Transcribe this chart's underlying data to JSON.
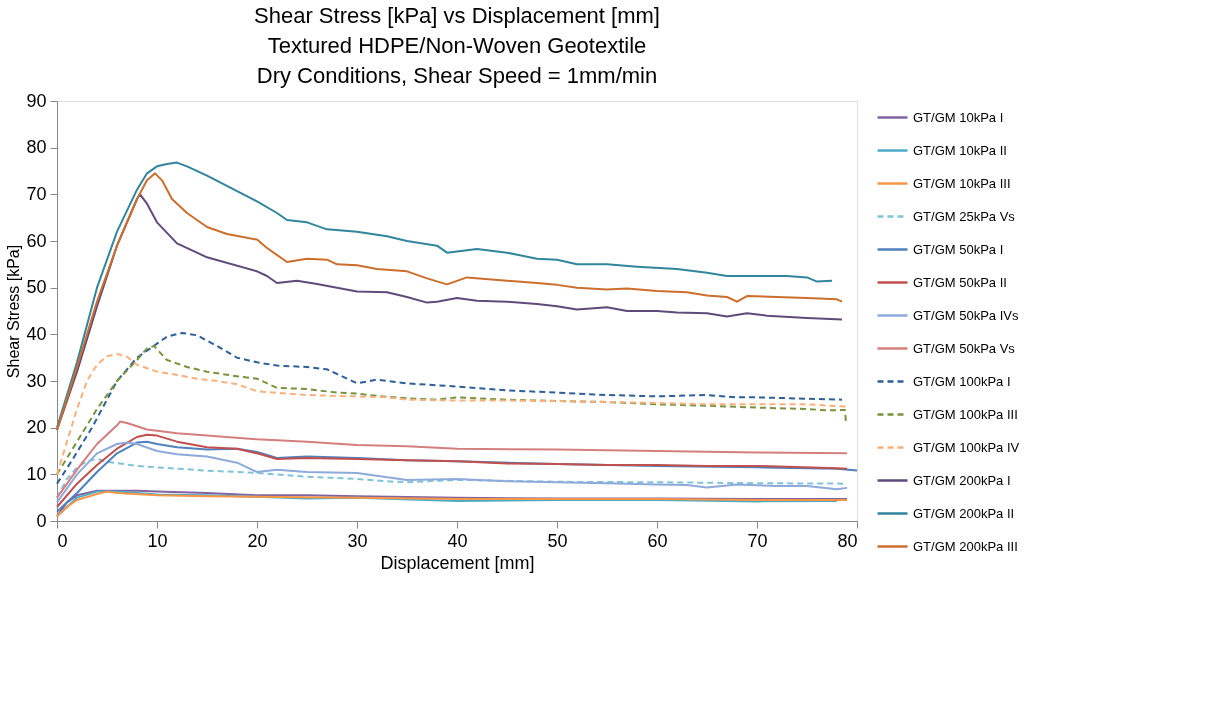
{
  "chart_data": {
    "type": "line",
    "title": "Shear Stress [kPa] vs Displacement [mm]\nTextured HDPE/Non-Woven Geotextile\nDry Conditions, Shear Speed = 1mm/min",
    "xlabel": "Displacement [mm]",
    "ylabel": "Shear Stress [kPa]",
    "xlim": [
      0,
      80
    ],
    "ylim": [
      0,
      90
    ],
    "xticks": [
      0,
      10,
      20,
      30,
      40,
      50,
      60,
      70,
      80
    ],
    "yticks": [
      0,
      10,
      20,
      30,
      40,
      50,
      60,
      70,
      80,
      90
    ],
    "grid": false,
    "legend": "right",
    "marker": "none",
    "series": [
      {
        "name": "GT/GM 10kPa I",
        "color": "#8064a2",
        "line_style": "solid",
        "x": [
          0,
          1,
          2,
          4,
          6,
          8,
          10,
          15,
          20,
          25,
          30,
          40,
          50,
          60,
          70,
          79
        ],
        "values": [
          1,
          4,
          5.5,
          6.5,
          6.5,
          6.5,
          6.3,
          6,
          5.5,
          5.5,
          5.3,
          5,
          4.8,
          4.8,
          4.7,
          4.7
        ]
      },
      {
        "name": "GT/GM 10kPa II",
        "color": "#4bacc6",
        "line_style": "solid",
        "x": [
          0,
          2,
          4,
          6,
          8,
          10,
          15,
          20,
          25,
          30,
          40,
          50,
          60,
          70,
          78
        ],
        "values": [
          1,
          5,
          6.3,
          6.3,
          6,
          5.7,
          5.5,
          5.2,
          4.8,
          5,
          4.3,
          4.5,
          4.5,
          4.2,
          4.3
        ]
      },
      {
        "name": "GT/GM 10kPa III",
        "color": "#f79646",
        "line_style": "solid",
        "x": [
          0,
          1,
          2,
          4,
          5,
          6,
          10,
          15,
          20,
          30,
          40,
          50,
          60,
          70,
          79
        ],
        "values": [
          1,
          3,
          4.5,
          5.8,
          6.3,
          6,
          5.5,
          5.3,
          5.2,
          5,
          4.7,
          4.7,
          4.7,
          4.5,
          4.5
        ]
      },
      {
        "name": "GT/GM 25kPa Vs",
        "color": "#7fc3d8",
        "line_style": "dashed",
        "x": [
          0,
          1,
          2,
          3,
          4,
          5,
          8,
          10,
          15,
          20,
          25,
          30,
          33,
          35,
          40,
          50,
          60,
          70,
          79
        ],
        "values": [
          5,
          9,
          11.5,
          12.8,
          13.3,
          12.7,
          11.8,
          11.5,
          10.8,
          10.3,
          9.5,
          9,
          8.5,
          8.3,
          8.8,
          8.4,
          8.3,
          8.1,
          8
        ]
      },
      {
        "name": "GT/GM 50kPa I",
        "color": "#4f81bd",
        "line_style": "solid",
        "x": [
          0,
          2,
          4,
          6,
          8,
          9,
          10,
          12,
          15,
          18,
          20,
          22,
          25,
          30,
          35,
          40,
          50,
          60,
          70,
          78,
          80
        ],
        "values": [
          2,
          6,
          10.5,
          14.5,
          16.8,
          17,
          16.5,
          15.8,
          15.3,
          15.5,
          14.8,
          13.5,
          13.8,
          13.5,
          13,
          12.8,
          12.2,
          11.8,
          11.5,
          11.2,
          10.8
        ]
      },
      {
        "name": "GT/GM 50kPa II",
        "color": "#c0504d",
        "line_style": "solid",
        "x": [
          0,
          2,
          4,
          6,
          8,
          9,
          10,
          12,
          15,
          18,
          20,
          22,
          25,
          30,
          35,
          40,
          45,
          50,
          55,
          60,
          65,
          70,
          78,
          79
        ],
        "values": [
          3,
          8,
          12,
          15.5,
          18,
          18.5,
          18.3,
          17,
          15.8,
          15.5,
          14.5,
          13.3,
          13.5,
          13.3,
          13,
          12.8,
          12.3,
          12.2,
          12,
          12,
          11.8,
          11.8,
          11.3,
          11.2
        ]
      },
      {
        "name": "GT/GM 50kPa IVs",
        "color": "#8eaadb",
        "line_style": "solid",
        "x": [
          0,
          2,
          4,
          6,
          7,
          8,
          10,
          12,
          15,
          18,
          20,
          22,
          25,
          30,
          35,
          40,
          45,
          50,
          55,
          60,
          63,
          65,
          68,
          72,
          75,
          78,
          79
        ],
        "values": [
          4,
          10,
          14.5,
          16.5,
          16.8,
          16.5,
          15,
          14.3,
          13.8,
          12.5,
          10.5,
          11,
          10.5,
          10.3,
          8.8,
          9,
          8.5,
          8.3,
          8.1,
          7.8,
          7.7,
          7.2,
          7.8,
          7.5,
          7.5,
          6.8,
          7.1
        ]
      },
      {
        "name": "GT/GM 50kPa Vs",
        "color": "#d47f7d",
        "line_style": "solid",
        "x": [
          0,
          2,
          4,
          6,
          6.3,
          7,
          9,
          12,
          15,
          20,
          25,
          30,
          35,
          40,
          50,
          60,
          70,
          79
        ],
        "values": [
          5,
          11,
          16.5,
          20.5,
          21.3,
          21,
          19.6,
          18.8,
          18.3,
          17.5,
          17,
          16.3,
          16,
          15.5,
          15.3,
          15,
          14.7,
          14.5
        ]
      },
      {
        "name": "GT/GM 100kPa I",
        "color": "#2f5f98",
        "line_style": "dashed",
        "x": [
          0,
          1.5,
          3.5,
          6,
          8,
          10,
          11,
          12.5,
          14,
          16,
          18,
          20,
          22,
          25,
          27,
          29,
          30,
          32,
          35,
          40,
          45,
          50,
          55,
          60,
          65,
          68,
          70,
          75,
          78.5
        ],
        "values": [
          8,
          13,
          20,
          30,
          35,
          38,
          39.5,
          40.3,
          39.8,
          37.5,
          35,
          34,
          33.3,
          33,
          32.5,
          30.5,
          29.5,
          30.3,
          29.5,
          28.8,
          28,
          27.5,
          27,
          26.7,
          27,
          26.5,
          26.5,
          26.2,
          26
        ]
      },
      {
        "name": "GT/GM 100kPa III",
        "color": "#77933c",
        "line_style": "dashed",
        "x": [
          0,
          2,
          4,
          6,
          8,
          9,
          9.7,
          11,
          13,
          15,
          18,
          20,
          22,
          25,
          28,
          30,
          32,
          35,
          38,
          40,
          45,
          50,
          55,
          60,
          65,
          70,
          75,
          77,
          78.8,
          78.9
        ],
        "values": [
          10,
          17,
          24,
          30,
          34.5,
          37,
          37.5,
          34.5,
          33,
          32,
          31,
          30.5,
          28.5,
          28.3,
          27.5,
          27.3,
          26.8,
          26.3,
          26,
          26.5,
          26,
          25.7,
          25.5,
          25,
          24.7,
          24.3,
          24,
          23.7,
          23.8,
          21
        ]
      },
      {
        "name": "GT/GM 100kPa IV",
        "color": "#fab07c",
        "line_style": "dashed",
        "x": [
          0,
          1,
          2,
          3,
          4,
          5,
          6,
          7,
          8,
          10,
          12,
          14,
          16,
          18,
          20,
          25,
          28,
          30,
          33,
          35,
          40,
          45,
          50,
          55,
          60,
          65,
          70,
          75,
          79
        ],
        "values": [
          10,
          17,
          24,
          30,
          33.5,
          35.3,
          35.8,
          35.2,
          33.5,
          32,
          31.3,
          30.5,
          30,
          29.3,
          27.8,
          27,
          26.8,
          26.7,
          26.5,
          26,
          25.8,
          25.8,
          25.7,
          25.5,
          25.3,
          25,
          25,
          25,
          24.5
        ]
      },
      {
        "name": "GT/GM 200kPa I",
        "color": "#604a7b",
        "line_style": "solid",
        "x": [
          0,
          2,
          4,
          6,
          8,
          8.3,
          9,
          10,
          12,
          15,
          20,
          21,
          22,
          24,
          26,
          30,
          33,
          35,
          37,
          38,
          40,
          42,
          45,
          48,
          50,
          52,
          55,
          57,
          60,
          62,
          65,
          67,
          69,
          71,
          75,
          78.5
        ],
        "values": [
          19.5,
          32,
          46,
          59,
          69,
          70,
          68,
          64,
          59.5,
          56.5,
          53.5,
          52.5,
          51,
          51.5,
          50.8,
          49.2,
          49,
          48,
          46.8,
          47,
          47.8,
          47.2,
          47,
          46.5,
          46,
          45.3,
          45.8,
          45,
          45,
          44.7,
          44.5,
          43.8,
          44.5,
          44,
          43.5,
          43.2
        ]
      },
      {
        "name": "GT/GM 200kPa II",
        "color": "#31859c",
        "line_style": "solid",
        "x": [
          0,
          2,
          4,
          6,
          8,
          9,
          10,
          11,
          12,
          13,
          15,
          20,
          22,
          23,
          25,
          27,
          30,
          33,
          35,
          38,
          39,
          42,
          45,
          48,
          50,
          52,
          55,
          58,
          62,
          65,
          67,
          70,
          73,
          75,
          76,
          77.5
        ],
        "values": [
          20,
          34,
          50,
          62,
          71,
          74.5,
          76,
          76.5,
          76.8,
          76,
          74,
          68.5,
          66,
          64.5,
          64,
          62.5,
          62,
          61,
          60,
          59,
          57.5,
          58.3,
          57.5,
          56.2,
          56,
          55,
          55,
          54.5,
          54,
          53.2,
          52.5,
          52.5,
          52.5,
          52.2,
          51.3,
          51.5
        ]
      },
      {
        "name": "GT/GM 200kPa III",
        "color": "#cc6e2c",
        "line_style": "solid",
        "x": [
          0,
          2,
          4,
          6,
          8,
          9,
          9.8,
          10.5,
          11.5,
          13,
          15,
          17,
          20,
          21,
          23,
          25,
          27,
          28,
          30,
          32,
          35,
          37,
          39,
          41,
          45,
          48,
          50,
          52,
          55,
          57,
          60,
          63,
          65,
          67,
          68,
          69,
          72,
          75,
          78,
          78.5
        ],
        "values": [
          19.5,
          33,
          47,
          59,
          69,
          73,
          74.5,
          73,
          69,
          66,
          63,
          61.5,
          60.3,
          58.5,
          55.5,
          56.2,
          56,
          55,
          54.8,
          54,
          53.5,
          52,
          50.7,
          52.2,
          51.5,
          51,
          50.6,
          50,
          49.6,
          49.8,
          49.3,
          49,
          48.3,
          48,
          47,
          48.2,
          48,
          47.8,
          47.5,
          47
        ]
      }
    ]
  }
}
